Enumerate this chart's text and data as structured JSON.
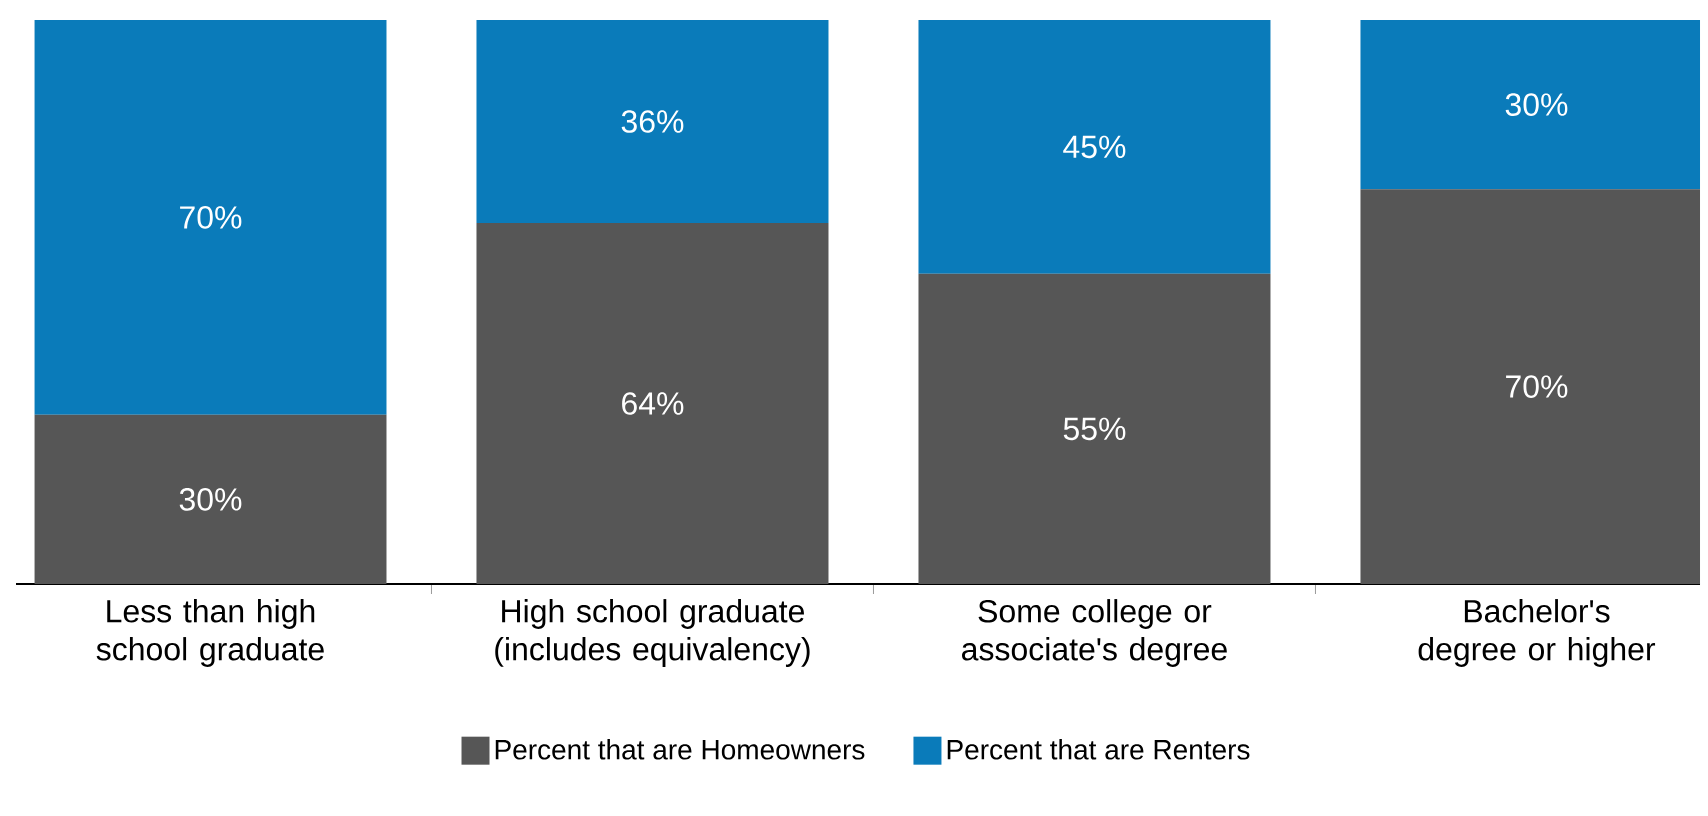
{
  "chart_data": {
    "type": "bar",
    "stacked": true,
    "categories": [
      "Less than high school graduate",
      "High school graduate (includes equivalency)",
      "Some college or associate's degree",
      "Bachelor's degree or higher"
    ],
    "ylim": [
      0,
      100
    ],
    "legend": "bottom",
    "tick_labels": "x",
    "series": [
      {
        "name": "Percent that are Homeowners",
        "color": "#565656",
        "values": [
          30,
          64,
          55,
          70
        ],
        "value_labels": [
          "30%",
          "64%",
          "55%",
          "70%"
        ]
      },
      {
        "name": "Percent that are Renters",
        "color": "#0a7bba",
        "values": [
          70,
          36,
          45,
          30
        ],
        "value_labels": [
          "70%",
          "36%",
          "45%",
          "30%"
        ]
      }
    ]
  }
}
